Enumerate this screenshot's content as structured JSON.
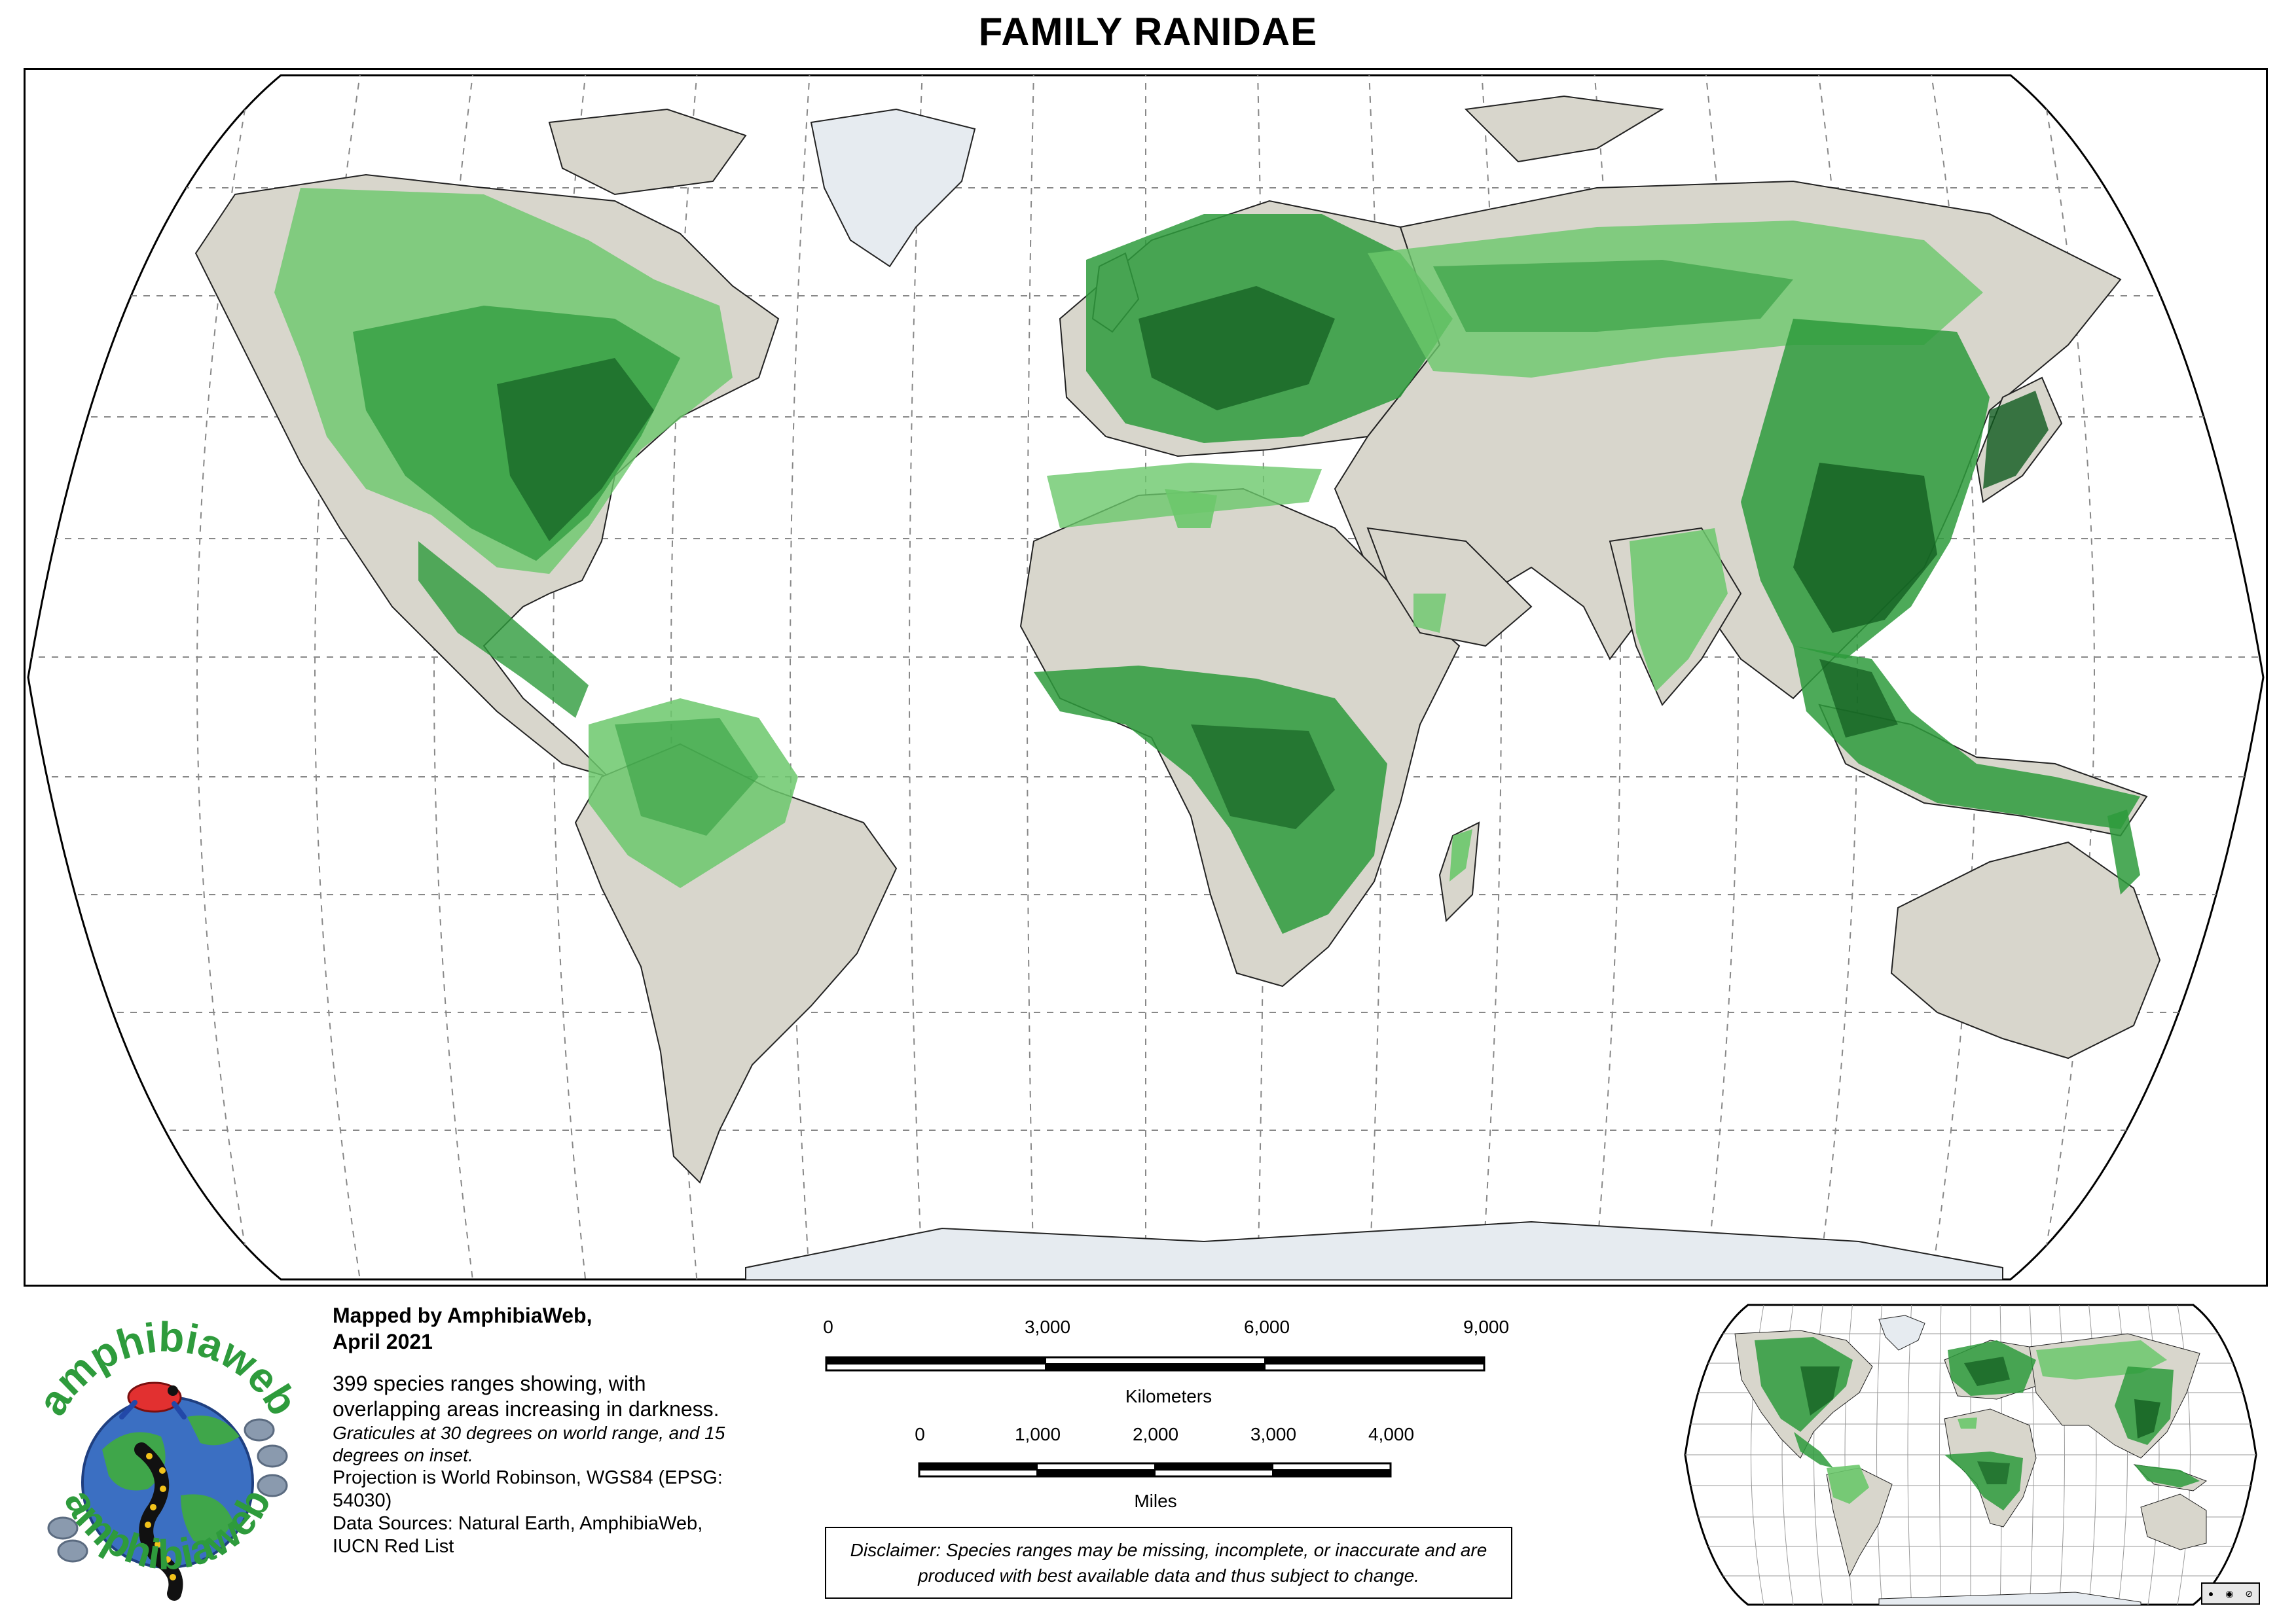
{
  "title": "FAMILY RANIDAE",
  "credit": {
    "line1": "Mapped by AmphibiaWeb,",
    "line2": "April 2021"
  },
  "description": {
    "species_note": "399 species ranges showing, with overlapping areas increasing in darkness.",
    "graticule_note": "Graticules at 30 degrees on world range, and 15 degrees on inset.",
    "projection": "Projection is World Robinson, WGS84 (EPSG: 54030)",
    "sources": "Data Sources: Natural Earth, AmphibiaWeb, IUCN Red List"
  },
  "scale_km": {
    "ticks": [
      "0",
      "3,000",
      "6,000",
      "9,000"
    ],
    "unit": "Kilometers"
  },
  "scale_mi": {
    "ticks": [
      "0",
      "1,000",
      "2,000",
      "3,000",
      "4,000"
    ],
    "unit": "Miles"
  },
  "disclaimer": "Disclaimer: Species ranges may be missing, incomplete, or inaccurate and are produced with best available data and thus subject to change.",
  "logo": {
    "text": "amphibiaweb"
  },
  "license": {
    "icons": [
      "cc-icon",
      "by-icon",
      "nc-icon"
    ]
  },
  "map": {
    "projection": "Robinson",
    "graticule_degrees_main": 30,
    "graticule_degrees_inset": 15,
    "colors": {
      "land": "#d8d6cc",
      "ice": "#e6ebf0",
      "range_light": "#6cc86c",
      "range_mid": "#2e9b3c",
      "range_dark": "#0f5a1e",
      "graticule": "#888888"
    }
  }
}
